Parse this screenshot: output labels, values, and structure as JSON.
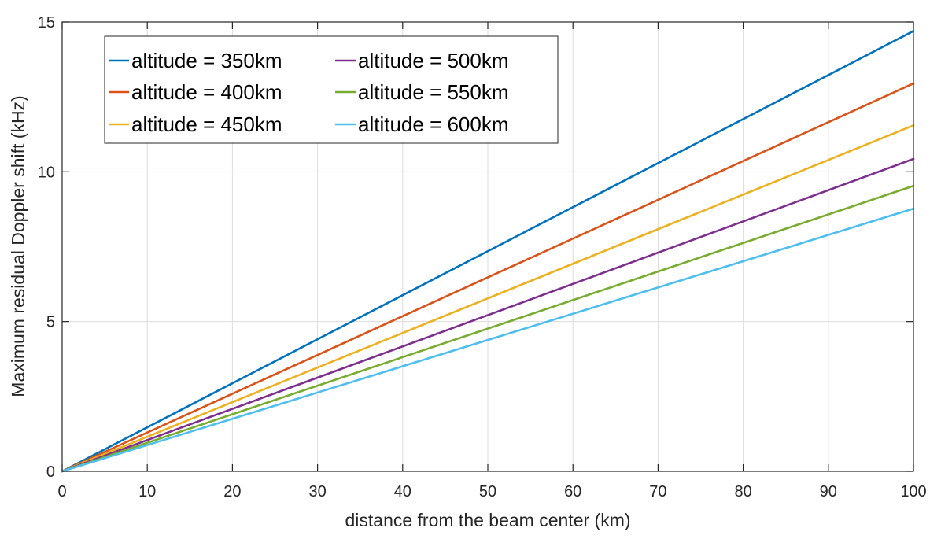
{
  "chart_data": {
    "type": "line",
    "title": "",
    "xlabel": "distance from the beam center (km)",
    "ylabel": "Maximum residual Doppler shift (kHz)",
    "xlim": [
      0,
      100
    ],
    "ylim": [
      0,
      15
    ],
    "xticks": [
      0,
      10,
      20,
      30,
      40,
      50,
      60,
      70,
      80,
      90,
      100
    ],
    "yticks": [
      0,
      5,
      10,
      15
    ],
    "grid": true,
    "legend_position": "top-left",
    "x": [
      0,
      100
    ],
    "series": [
      {
        "name": "altitude = 350km",
        "color": "#0072BD",
        "values": [
          0,
          14.7
        ]
      },
      {
        "name": "altitude = 400km",
        "color": "#D95319",
        "values": [
          0,
          12.95
        ]
      },
      {
        "name": "altitude = 450km",
        "color": "#EDB120",
        "values": [
          0,
          11.55
        ]
      },
      {
        "name": "altitude = 500km",
        "color": "#7E2F8E",
        "values": [
          0,
          10.43
        ]
      },
      {
        "name": "altitude = 550km",
        "color": "#77AC30",
        "values": [
          0,
          9.53
        ]
      },
      {
        "name": "altitude = 600km",
        "color": "#4DBEEE",
        "values": [
          0,
          8.77
        ]
      }
    ]
  }
}
